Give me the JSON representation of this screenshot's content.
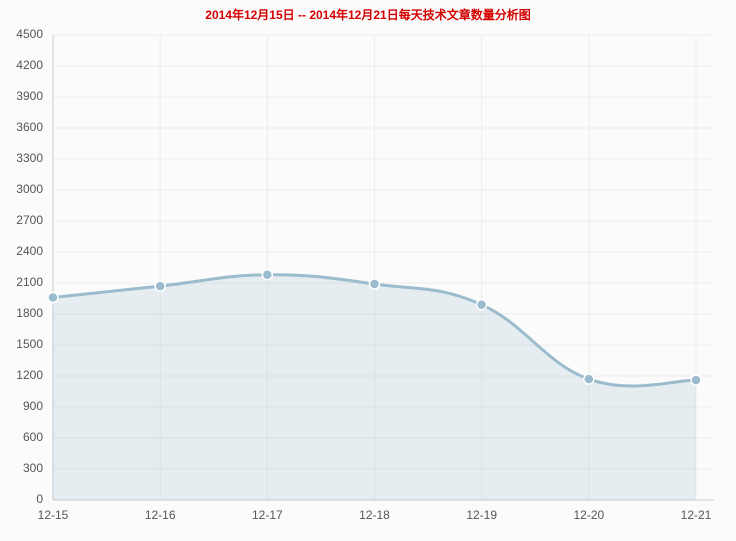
{
  "chart_data": {
    "type": "line",
    "title": "2014年12月15日 -- 2014年12月21日每天技术文章数量分析图",
    "categories": [
      "12-15",
      "12-16",
      "12-17",
      "12-18",
      "12-19",
      "12-20",
      "12-21"
    ],
    "series": [
      {
        "name": "每天技术文章数量",
        "color": "#9bbccd",
        "values": [
          1960,
          2070,
          2180,
          2090,
          1890,
          1170,
          1160
        ]
      }
    ],
    "ylim": [
      0,
      4500
    ],
    "yticks": [
      0,
      300,
      600,
      900,
      1200,
      1500,
      1800,
      2100,
      2400,
      2700,
      3000,
      3300,
      3600,
      3900,
      4200,
      4500
    ],
    "grid": true
  }
}
